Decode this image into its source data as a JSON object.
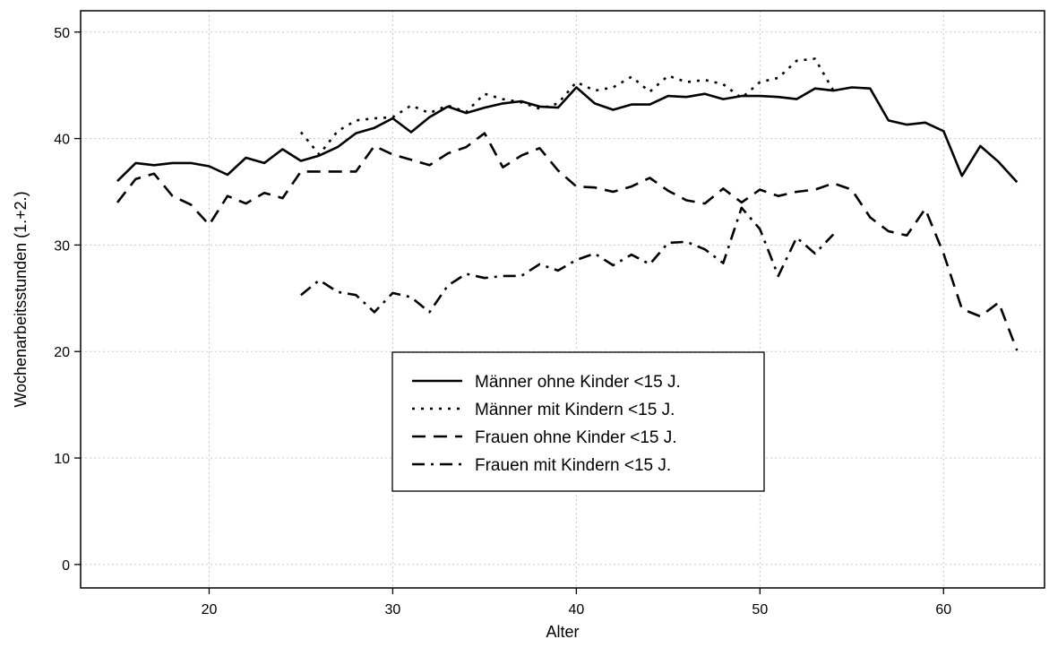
{
  "chart_data": {
    "type": "line",
    "xlabel": "Alter",
    "ylabel": "Wochenarbeitsstunden (1.+2.)",
    "xlim": [
      13,
      65.5
    ],
    "ylim": [
      -2.2,
      52
    ],
    "xticks": [
      20,
      30,
      40,
      50,
      60
    ],
    "yticks": [
      0,
      10,
      20,
      30,
      40,
      50
    ],
    "grid": true,
    "legend_position": "center",
    "series": [
      {
        "name": "Männer ohne Kinder <15 J.",
        "style": "solid",
        "x": [
          15,
          16,
          17,
          18,
          19,
          20,
          21,
          22,
          23,
          24,
          25,
          26,
          27,
          28,
          29,
          30,
          31,
          32,
          33,
          34,
          35,
          36,
          37,
          38,
          39,
          40,
          41,
          42,
          43,
          44,
          45,
          46,
          47,
          48,
          49,
          50,
          51,
          52,
          53,
          54,
          55,
          56,
          57,
          58,
          59,
          60,
          61,
          62,
          63,
          64
        ],
        "y": [
          36.0,
          37.7,
          37.5,
          37.7,
          37.7,
          37.4,
          36.6,
          38.2,
          37.7,
          39.0,
          37.9,
          38.4,
          39.2,
          40.5,
          41.0,
          41.9,
          40.6,
          42.0,
          43.0,
          42.4,
          42.9,
          43.3,
          43.5,
          43.0,
          42.9,
          44.8,
          43.3,
          42.7,
          43.2,
          43.2,
          44.0,
          43.9,
          44.2,
          43.7,
          44.0,
          44.0,
          43.9,
          43.7,
          44.7,
          44.5,
          44.8,
          44.7,
          41.7,
          41.3,
          41.5,
          40.7,
          36.5,
          39.3,
          37.8,
          35.9
        ]
      },
      {
        "name": "Männer mit Kindern <15 J.",
        "style": "dotted",
        "x": [
          25,
          26,
          27,
          28,
          29,
          30,
          31,
          32,
          33,
          34,
          35,
          36,
          37,
          38,
          39,
          40,
          41,
          42,
          43,
          44,
          45,
          46,
          47,
          48,
          49,
          50,
          51,
          52,
          53,
          54
        ],
        "y": [
          40.6,
          38.5,
          40.7,
          41.7,
          41.9,
          42.0,
          43.1,
          42.4,
          43.1,
          42.5,
          44.2,
          43.7,
          43.4,
          42.8,
          43.3,
          45.3,
          44.5,
          44.8,
          45.8,
          44.4,
          45.9,
          45.3,
          45.5,
          45.1,
          43.8,
          45.3,
          45.7,
          47.3,
          47.5,
          44.5
        ]
      },
      {
        "name": "Frauen ohne Kinder <15 J.",
        "style": "dashed",
        "x": [
          15,
          16,
          17,
          18,
          19,
          20,
          21,
          22,
          23,
          24,
          25,
          26,
          27,
          28,
          29,
          30,
          31,
          32,
          33,
          34,
          35,
          36,
          37,
          38,
          39,
          40,
          41,
          42,
          43,
          44,
          45,
          46,
          47,
          48,
          49,
          50,
          51,
          52,
          53,
          54,
          55,
          56,
          57,
          58,
          59,
          60,
          61,
          62,
          63,
          64
        ],
        "y": [
          34.0,
          36.2,
          36.7,
          34.6,
          33.8,
          31.9,
          34.6,
          33.9,
          34.9,
          34.4,
          36.9,
          36.9,
          36.9,
          36.9,
          39.3,
          38.5,
          38.0,
          37.5,
          38.6,
          39.2,
          40.5,
          37.3,
          38.4,
          39.1,
          37.0,
          35.5,
          35.4,
          35.0,
          35.5,
          36.3,
          35.1,
          34.2,
          33.9,
          35.3,
          34.0,
          35.2,
          34.6,
          35.0,
          35.2,
          35.8,
          35.2,
          32.6,
          31.3,
          30.9,
          33.4,
          29.2,
          24.0,
          23.3,
          24.6,
          20.1
        ]
      },
      {
        "name": "Frauen mit Kindern <15 J.",
        "style": "dashdot",
        "x": [
          25,
          26,
          27,
          28,
          29,
          30,
          31,
          32,
          33,
          34,
          35,
          36,
          37,
          38,
          39,
          40,
          41,
          42,
          43,
          44,
          45,
          46,
          47,
          48,
          49,
          50,
          51,
          52,
          53,
          54
        ],
        "y": [
          25.3,
          26.7,
          25.6,
          25.3,
          23.7,
          25.5,
          25.1,
          23.7,
          26.2,
          27.3,
          26.9,
          27.1,
          27.1,
          28.2,
          27.6,
          28.6,
          29.2,
          28.1,
          29.1,
          28.2,
          30.2,
          30.3,
          29.6,
          28.3,
          33.5,
          31.5,
          27.1,
          30.7,
          29.2,
          31.0
        ]
      }
    ]
  }
}
